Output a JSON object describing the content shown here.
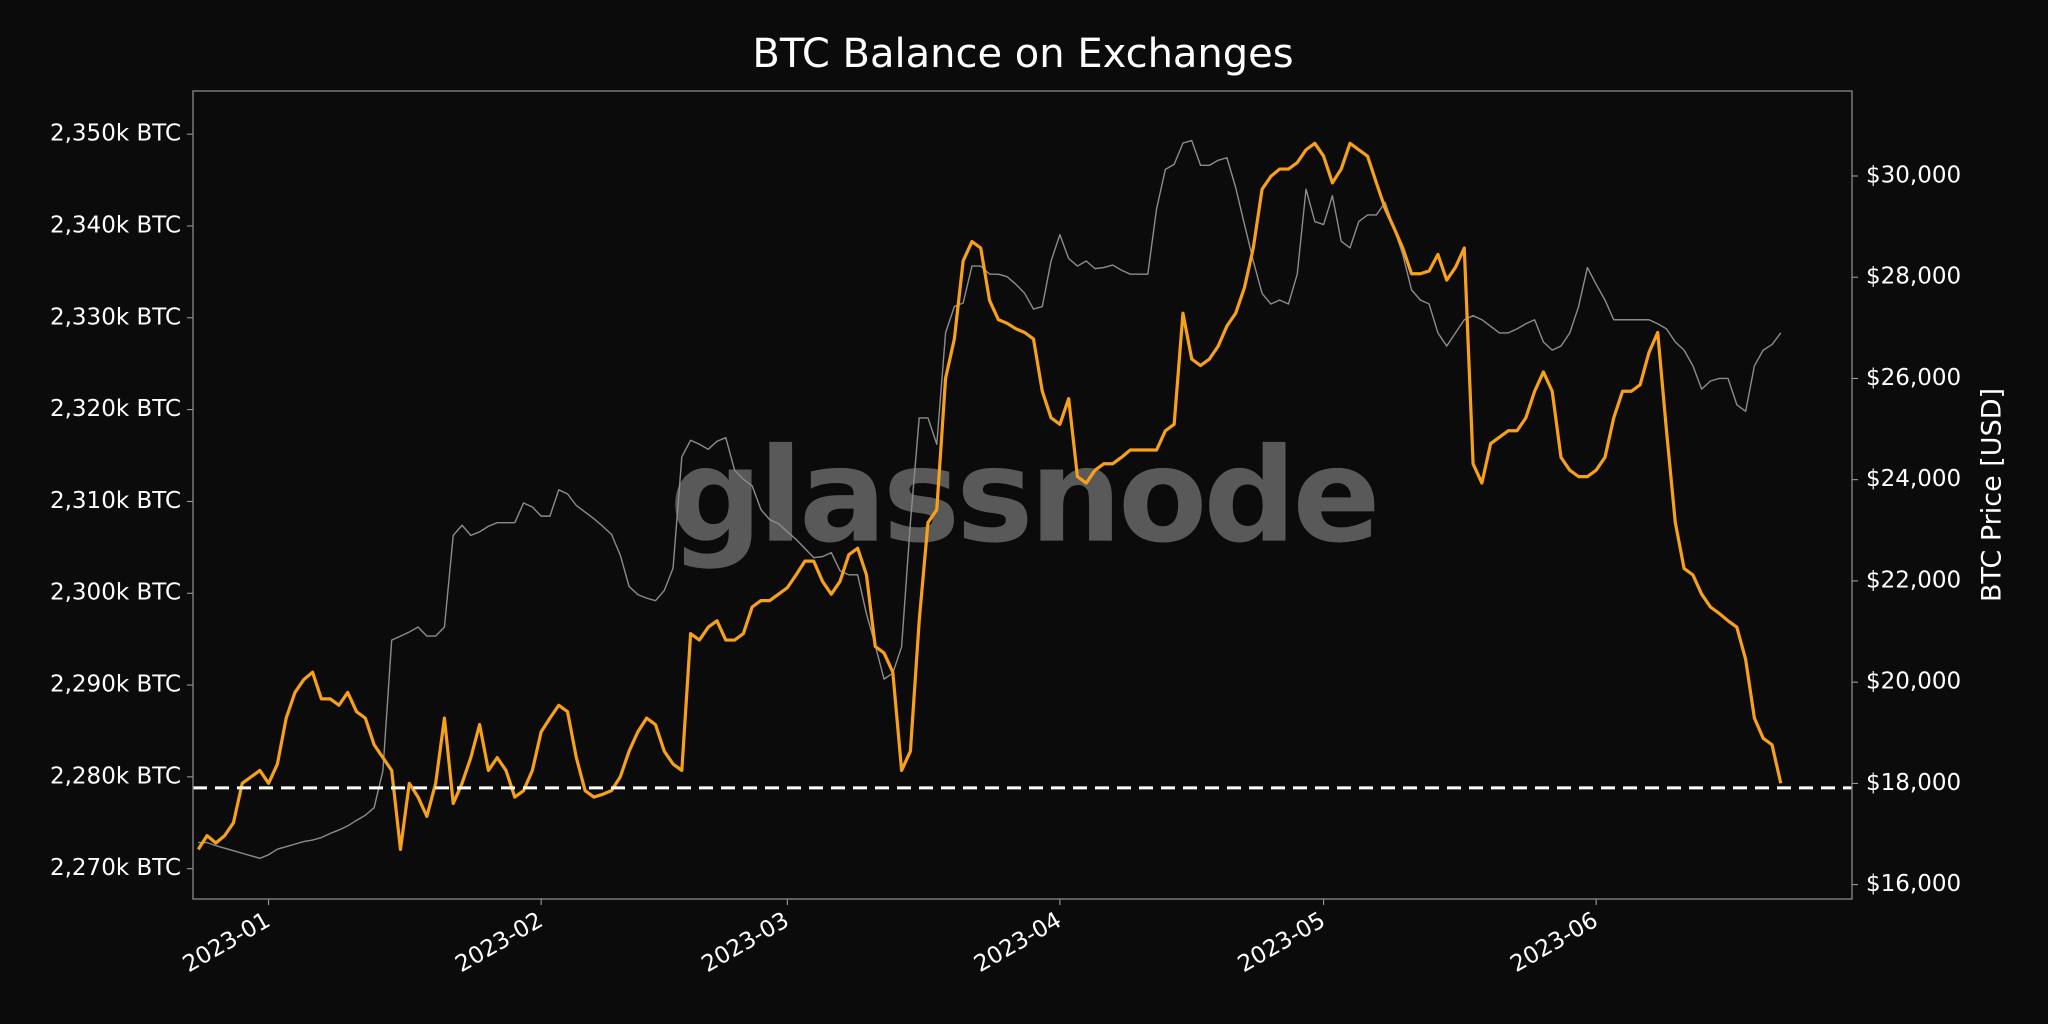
{
  "chart_data": {
    "type": "line",
    "title": "BTC Balance on Exchanges",
    "y2label": "BTC Price [USD]",
    "watermark": "glassnode",
    "categories": [
      null,
      null,
      null,
      null,
      null,
      null,
      null,
      null,
      "2023-01",
      null,
      null,
      null,
      null,
      null,
      null,
      null,
      null,
      null,
      null,
      null,
      null,
      null,
      null,
      null,
      null,
      null,
      null,
      null,
      null,
      null,
      null,
      null,
      null,
      null,
      null,
      null,
      null,
      null,
      null,
      "2023-02",
      null,
      null,
      null,
      null,
      null,
      null,
      null,
      null,
      null,
      null,
      null,
      null,
      null,
      null,
      null,
      null,
      null,
      null,
      null,
      null,
      null,
      null,
      null,
      null,
      null,
      null,
      null,
      "2023-03",
      null,
      null,
      null,
      null,
      null,
      null,
      null,
      null,
      null,
      null,
      null,
      null,
      null,
      null,
      null,
      null,
      null,
      null,
      null,
      null,
      null,
      null,
      null,
      null,
      null,
      null,
      null,
      null,
      null,
      null,
      "2023-04",
      null,
      null,
      null,
      null,
      null,
      null,
      null,
      null,
      null,
      null,
      null,
      null,
      null,
      null,
      null,
      null,
      null,
      null,
      null,
      null,
      null,
      null,
      null,
      null,
      null,
      null,
      null,
      null,
      null,
      "2023-05",
      null,
      null,
      null,
      null,
      null,
      null,
      null,
      null,
      null,
      null,
      null,
      null,
      null,
      null,
      null,
      null,
      null,
      null,
      null,
      null,
      null,
      null,
      null,
      null,
      null,
      null,
      null,
      null,
      null,
      null,
      "2023-06",
      null,
      null,
      null,
      null,
      null,
      null,
      null,
      null,
      null,
      null,
      null,
      null,
      null,
      null,
      null,
      null,
      null,
      null,
      null,
      null,
      null
    ],
    "series": [
      {
        "color": "#8c8c8c",
        "axis": "y2",
        "values": [
          16830,
          16830,
          16770,
          16720,
          16670,
          16620,
          16570,
          16520,
          16590,
          16700,
          16750,
          16800,
          16850,
          16880,
          16930,
          17010,
          17080,
          17160,
          17270,
          17370,
          17520,
          18250,
          20830,
          20910,
          20990,
          21090,
          20910,
          20910,
          21090,
          22900,
          23100,
          22900,
          22970,
          23080,
          23150,
          23150,
          23150,
          23540,
          23460,
          23280,
          23280,
          23800,
          23720,
          23490,
          23360,
          23230,
          23080,
          22920,
          22510,
          21890,
          21730,
          21660,
          21610,
          21810,
          22250,
          24450,
          24780,
          24700,
          24600,
          24760,
          24830,
          24190,
          24010,
          23880,
          23410,
          23210,
          23130,
          22970,
          22820,
          22640,
          22460,
          22480,
          22560,
          22200,
          22120,
          22120,
          21350,
          20730,
          20060,
          20180,
          20700,
          23150,
          25220,
          25220,
          24700,
          26900,
          27420,
          27490,
          28220,
          28220,
          28060,
          28060,
          28010,
          27860,
          27680,
          27370,
          27420,
          28320,
          28840,
          28370,
          28220,
          28320,
          28170,
          28190,
          28240,
          28140,
          28060,
          28060,
          28060,
          29350,
          30130,
          30230,
          30650,
          30700,
          30210,
          30210,
          30310,
          30360,
          29770,
          29040,
          28320,
          27680,
          27470,
          27550,
          27470,
          28060,
          29740,
          29100,
          29040,
          29610,
          28710,
          28580,
          29100,
          29230,
          29230,
          29480,
          28970,
          28450,
          27750,
          27550,
          27470,
          26900,
          26640,
          26900,
          27160,
          27240,
          27160,
          27030,
          26900,
          26900,
          26980,
          27080,
          27160,
          26720,
          26560,
          26640,
          26900,
          27420,
          28190,
          27860,
          27550,
          27160,
          27160,
          27160,
          27160,
          27160,
          27080,
          26980,
          26720,
          26560,
          26250,
          25790,
          25950,
          26000,
          26000,
          25480,
          25350,
          26250,
          26560,
          26670,
          26900
        ]
      },
      {
        "color": "#f7a11a",
        "axis": "y",
        "values": [
          2272100,
          2273600,
          2272800,
          2273600,
          2275000,
          2279300,
          2280000,
          2280700,
          2279300,
          2281400,
          2286400,
          2289200,
          2290600,
          2291400,
          2288500,
          2288500,
          2287800,
          2289200,
          2287100,
          2286400,
          2283500,
          2282100,
          2280700,
          2272100,
          2279300,
          2277800,
          2275700,
          2279300,
          2286400,
          2277100,
          2279300,
          2282100,
          2285700,
          2280700,
          2282100,
          2280700,
          2277800,
          2278500,
          2280700,
          2284900,
          2286400,
          2287800,
          2287100,
          2282100,
          2278500,
          2277800,
          2278100,
          2278500,
          2280000,
          2282800,
          2284900,
          2286400,
          2285700,
          2282800,
          2281400,
          2280700,
          2295600,
          2294900,
          2296300,
          2297000,
          2294900,
          2294900,
          2295600,
          2298500,
          2299200,
          2299200,
          2299900,
          2300600,
          2302000,
          2303500,
          2303500,
          2301300,
          2299900,
          2301300,
          2304200,
          2304900,
          2302000,
          2294200,
          2293500,
          2291400,
          2280700,
          2282800,
          2297000,
          2307700,
          2309100,
          2323400,
          2327700,
          2336200,
          2338300,
          2337600,
          2331900,
          2329800,
          2329400,
          2328800,
          2328400,
          2327700,
          2322000,
          2319100,
          2318400,
          2321200,
          2312700,
          2312000,
          2313400,
          2314100,
          2314100,
          2314800,
          2315600,
          2315600,
          2315600,
          2315600,
          2317700,
          2318400,
          2330500,
          2325500,
          2324800,
          2325500,
          2326900,
          2329100,
          2330500,
          2333300,
          2337600,
          2344000,
          2345400,
          2346200,
          2346200,
          2346900,
          2348300,
          2349000,
          2347600,
          2344700,
          2346200,
          2349000,
          2348300,
          2347600,
          2344700,
          2341900,
          2339800,
          2337600,
          2334800,
          2334800,
          2335100,
          2336900,
          2334100,
          2335500,
          2337600,
          2314100,
          2312000,
          2316300,
          2317000,
          2317700,
          2317700,
          2319100,
          2322000,
          2324100,
          2322000,
          2314800,
          2313400,
          2312700,
          2312700,
          2313400,
          2314800,
          2319100,
          2322000,
          2322000,
          2322700,
          2326200,
          2328400,
          2317700,
          2307700,
          2302700,
          2302000,
          2299900,
          2298500,
          2297800,
          2297000,
          2296300,
          2292800,
          2286400,
          2284200,
          2283500,
          2279300
        ]
      }
    ],
    "reference_line": 2278800,
    "ylim": [
      2266700,
      2354700
    ],
    "yticks": [
      {
        "value": 2270000,
        "label": "2,270k BTC"
      },
      {
        "value": 2280000,
        "label": "2,280k BTC"
      },
      {
        "value": 2290000,
        "label": "2,290k BTC"
      },
      {
        "value": 2300000,
        "label": "2,300k BTC"
      },
      {
        "value": 2310000,
        "label": "2,310k BTC"
      },
      {
        "value": 2320000,
        "label": "2,320k BTC"
      },
      {
        "value": 2330000,
        "label": "2,330k BTC"
      },
      {
        "value": 2340000,
        "label": "2,340k BTC"
      },
      {
        "value": 2350000,
        "label": "2,350k BTC"
      }
    ],
    "y2lim": [
      15716,
      31679
    ],
    "y2ticks": [
      {
        "value": 16000,
        "label": "$16,000"
      },
      {
        "value": 18000,
        "label": "$18,000"
      },
      {
        "value": 20000,
        "label": "$20,000"
      },
      {
        "value": 22000,
        "label": "$22,000"
      },
      {
        "value": 24000,
        "label": "$24,000"
      },
      {
        "value": 26000,
        "label": "$26,000"
      },
      {
        "value": 28000,
        "label": "$28,000"
      },
      {
        "value": 30000,
        "label": "$30,000"
      }
    ]
  }
}
